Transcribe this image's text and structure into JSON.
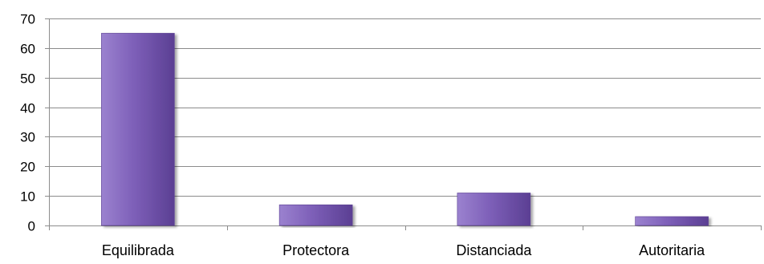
{
  "chart_data": {
    "type": "bar",
    "categories": [
      "Equilibrada",
      "Protectora",
      "Distanciada",
      "Autoritaria"
    ],
    "values": [
      65,
      7,
      11,
      3
    ],
    "ylim": [
      0,
      70
    ],
    "yticks": [
      "0",
      "10",
      "20",
      "30",
      "40",
      "50",
      "60",
      "70"
    ],
    "grid": true,
    "legend": "none",
    "colors": {
      "bar_light": "#9b82cf",
      "bar_mid": "#7d5fb8",
      "bar_dark": "#5b3f93",
      "grid": "#8c8c8c",
      "axis": "#8c8c8c"
    }
  }
}
